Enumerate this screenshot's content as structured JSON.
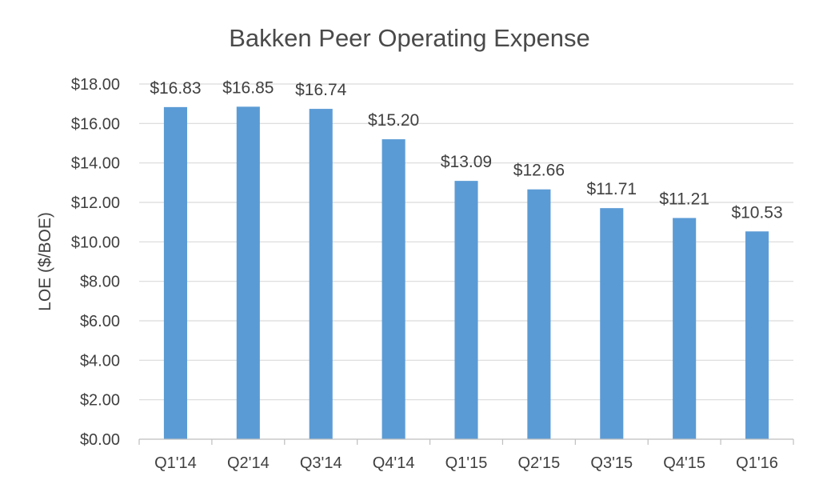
{
  "chart_data": {
    "type": "bar",
    "title": "Bakken Peer Operating Expense",
    "xlabel": "",
    "ylabel": "LOE ($/BOE)",
    "categories": [
      "Q1'14",
      "Q2'14",
      "Q3'14",
      "Q4'14",
      "Q1'15",
      "Q2'15",
      "Q3'15",
      "Q4'15",
      "Q1'16"
    ],
    "values": [
      16.83,
      16.85,
      16.74,
      15.2,
      13.09,
      12.66,
      11.71,
      11.21,
      10.53
    ],
    "data_labels": [
      "$16.83",
      "$16.85",
      "$16.74",
      "$15.20",
      "$13.09",
      "$12.66",
      "$11.71",
      "$11.21",
      "$10.53"
    ],
    "ylim": [
      0,
      18
    ],
    "yticks": [
      0,
      2,
      4,
      6,
      8,
      10,
      12,
      14,
      16,
      18
    ],
    "ytick_labels": [
      "$0.00",
      "$2.00",
      "$4.00",
      "$6.00",
      "$8.00",
      "$10.00",
      "$12.00",
      "$14.00",
      "$16.00",
      "$18.00"
    ],
    "grid": true,
    "legend": "none",
    "colors": {
      "bar": "#5b9bd5",
      "grid": "#d9d9d9",
      "axis": "#bfbfbf",
      "text": "#404040"
    }
  }
}
